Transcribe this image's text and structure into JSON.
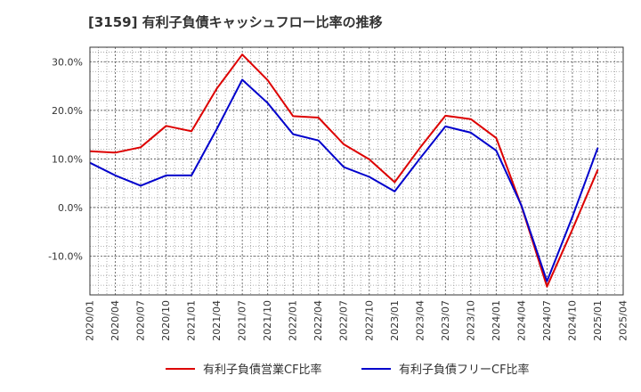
{
  "chart_data": {
    "type": "line",
    "title": "[3159]  有利子負債キャッシュフロー比率の推移",
    "xlabel": "",
    "ylabel": "",
    "x": [
      "2020/01",
      "2020/04",
      "2020/07",
      "2020/10",
      "2021/01",
      "2021/04",
      "2021/07",
      "2021/10",
      "2022/01",
      "2022/04",
      "2022/07",
      "2022/10",
      "2023/01",
      "2023/04",
      "2023/07",
      "2023/10",
      "2024/01",
      "2024/04",
      "2024/07",
      "2024/10",
      "2025/01",
      "2025/04"
    ],
    "ylim": [
      -18,
      33
    ],
    "yticks": [
      30,
      20,
      10,
      0,
      -10
    ],
    "ytick_labels": [
      "30.0%",
      "20.0%",
      "10.0%",
      "0.0%",
      "-10.0%"
    ],
    "grid": true,
    "legend_position": "bottom",
    "series": [
      {
        "name": "有利子負債営業CF比率",
        "color": "#dd0000",
        "values": [
          11.6,
          11.3,
          12.4,
          16.8,
          15.7,
          24.5,
          31.5,
          26.2,
          18.8,
          18.5,
          13.0,
          9.9,
          5.2,
          12.3,
          18.9,
          18.2,
          14.3,
          0.2,
          -16.3,
          -4.5,
          7.8,
          null
        ]
      },
      {
        "name": "有利子負債フリーCF比率",
        "color": "#0000cc",
        "values": [
          9.2,
          6.6,
          4.5,
          6.6,
          6.6,
          16.2,
          26.3,
          21.5,
          15.1,
          13.8,
          8.3,
          6.3,
          3.3,
          10.1,
          16.7,
          15.4,
          11.7,
          0.3,
          -15.2,
          -1.9,
          12.3,
          null
        ]
      }
    ]
  }
}
